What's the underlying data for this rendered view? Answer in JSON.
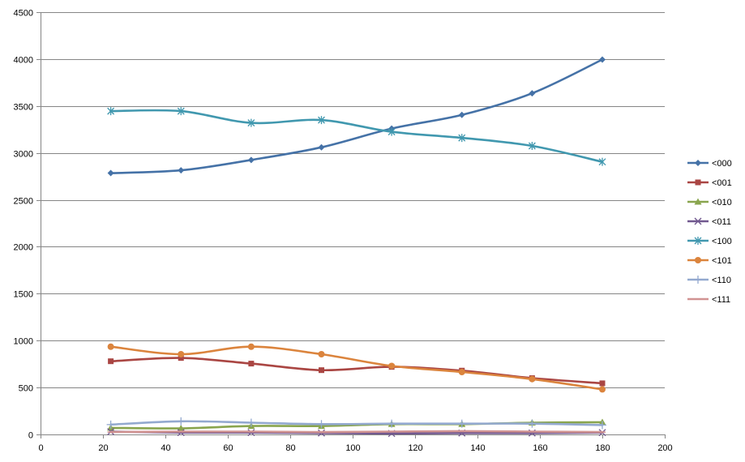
{
  "chart_data": {
    "type": "line",
    "title": "",
    "xlabel": "",
    "ylabel": "",
    "xlim": [
      0,
      200
    ],
    "ylim": [
      0,
      4500
    ],
    "xticks": [
      0,
      20,
      40,
      60,
      80,
      100,
      120,
      140,
      160,
      180,
      200
    ],
    "yticks": [
      0,
      500,
      1000,
      1500,
      2000,
      2500,
      3000,
      3500,
      4000,
      4500
    ],
    "grid": "horizontal",
    "legend_position": "right",
    "x": [
      22.5,
      45,
      67.5,
      90,
      112.5,
      135,
      157.5,
      180
    ],
    "series": [
      {
        "name": "<000",
        "color": "#4572A7",
        "marker": "diamond",
        "values": [
          2785,
          2815,
          2925,
          3060,
          3260,
          3405,
          3635,
          3995
        ]
      },
      {
        "name": "<001",
        "color": "#AA4643",
        "marker": "square",
        "values": [
          780,
          815,
          755,
          685,
          720,
          680,
          600,
          545
        ]
      },
      {
        "name": "<010",
        "color": "#89A54E",
        "marker": "triangle",
        "values": [
          70,
          65,
          90,
          90,
          110,
          110,
          125,
          130
        ]
      },
      {
        "name": "<011",
        "color": "#71588F",
        "marker": "x",
        "values": [
          30,
          20,
          20,
          15,
          10,
          15,
          15,
          20
        ]
      },
      {
        "name": "<100",
        "color": "#4198AF",
        "marker": "star",
        "values": [
          3445,
          3445,
          3320,
          3350,
          3225,
          3160,
          3075,
          2905
        ]
      },
      {
        "name": "<101",
        "color": "#DB843D",
        "marker": "circle",
        "values": [
          935,
          855,
          935,
          855,
          730,
          665,
          590,
          480
        ]
      },
      {
        "name": "<110",
        "color": "#93A9CF",
        "marker": "plus",
        "values": [
          105,
          140,
          125,
          110,
          115,
          115,
          115,
          100
        ]
      },
      {
        "name": "<111",
        "color": "#D19392",
        "marker": "dash",
        "values": [
          25,
          30,
          30,
          25,
          30,
          35,
          30,
          25
        ]
      }
    ]
  }
}
